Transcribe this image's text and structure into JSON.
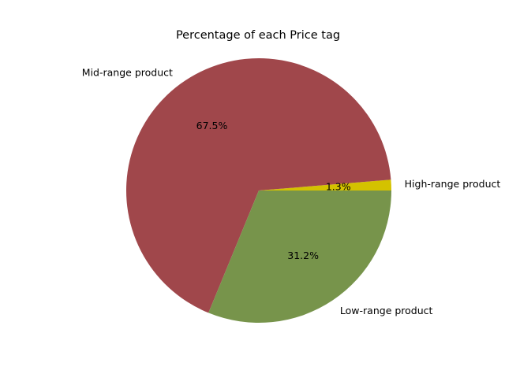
{
  "chart_data": {
    "type": "pie",
    "title": "Percentage of each Price tag",
    "start_angle": 0,
    "direction": "counterclockwise",
    "slices": [
      {
        "label": "High-range product",
        "value": 1.3,
        "pct_label": "1.3%",
        "color": "#d4c200"
      },
      {
        "label": "Mid-range product",
        "value": 67.5,
        "pct_label": "67.5%",
        "color": "#a0474b"
      },
      {
        "label": "Low-range product",
        "value": 31.2,
        "pct_label": "31.2%",
        "color": "#77944b"
      }
    ]
  }
}
